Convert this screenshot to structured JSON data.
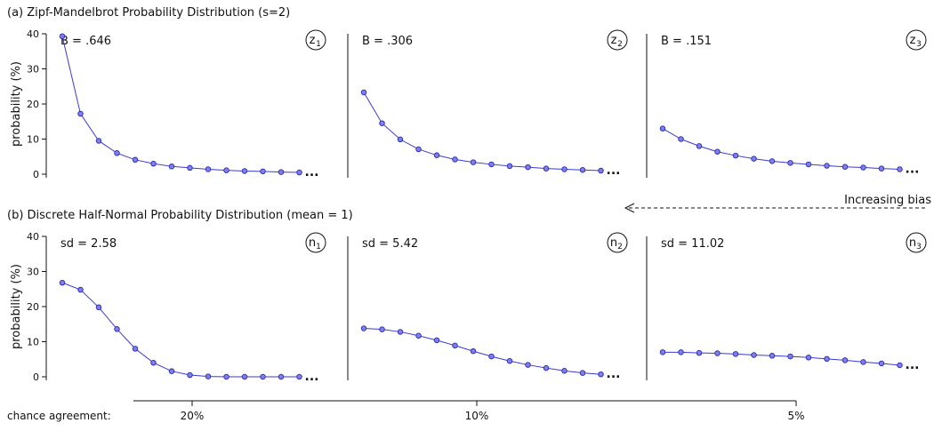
{
  "row_a_title": "(a) Zipf-Mandelbrot Probability Distribution (s=2)",
  "row_b_title": "(b) Discrete Half-Normal Probability Distribution (mean = 1)",
  "bias_label": "Increasing bias",
  "agreement": {
    "label": "chance agreement:",
    "ticks": [
      "20%",
      "10%",
      "5%"
    ]
  },
  "ellipsis": "...",
  "style": {
    "line_color": "#3a3ad0",
    "marker_fill": "#7f7fe8",
    "marker_stroke": "#2a2ab8",
    "axis_color": "#111111"
  },
  "chart_data": [
    {
      "type": "line",
      "row": "a",
      "col": 0,
      "badge": "z",
      "badge_sub": "1",
      "annotation": "B = .646",
      "ylabel": "probability (%)",
      "ylim": [
        0,
        40
      ],
      "yticks": [
        "0",
        "10",
        "20",
        "30",
        "40"
      ],
      "x": [
        1,
        2,
        3,
        4,
        5,
        6,
        7,
        8,
        9,
        10,
        11,
        12,
        13,
        14
      ],
      "values": [
        39.3,
        17.2,
        9.5,
        6.0,
        4.1,
        3.0,
        2.2,
        1.8,
        1.4,
        1.1,
        0.9,
        0.8,
        0.6,
        0.5
      ]
    },
    {
      "type": "line",
      "row": "a",
      "col": 1,
      "badge": "z",
      "badge_sub": "2",
      "annotation": "B = .306",
      "ylim": [
        0,
        40
      ],
      "x": [
        1,
        2,
        3,
        4,
        5,
        6,
        7,
        8,
        9,
        10,
        11,
        12,
        13,
        14
      ],
      "values": [
        23.3,
        14.5,
        9.9,
        7.1,
        5.4,
        4.2,
        3.4,
        2.8,
        2.3,
        2.0,
        1.6,
        1.4,
        1.2,
        1.0
      ]
    },
    {
      "type": "line",
      "row": "a",
      "col": 2,
      "badge": "z",
      "badge_sub": "3",
      "annotation": "B = .151",
      "ylim": [
        0,
        40
      ],
      "x": [
        1,
        2,
        3,
        4,
        5,
        6,
        7,
        8,
        9,
        10,
        11,
        12,
        13,
        14
      ],
      "values": [
        13.0,
        10.0,
        8.0,
        6.4,
        5.3,
        4.4,
        3.7,
        3.2,
        2.8,
        2.4,
        2.1,
        1.9,
        1.6,
        1.4
      ]
    },
    {
      "type": "line",
      "row": "b",
      "col": 0,
      "badge": "n",
      "badge_sub": "1",
      "annotation": "sd = 2.58",
      "ylabel": "probability (%)",
      "ylim": [
        0,
        40
      ],
      "yticks": [
        "0",
        "10",
        "20",
        "30",
        "40"
      ],
      "x": [
        1,
        2,
        3,
        4,
        5,
        6,
        7,
        8,
        9,
        10,
        11,
        12,
        13,
        14
      ],
      "values": [
        26.8,
        24.8,
        19.8,
        13.6,
        8.0,
        4.0,
        1.6,
        0.5,
        0.1,
        0.0,
        0.0,
        0.0,
        0.0,
        0.0
      ]
    },
    {
      "type": "line",
      "row": "b",
      "col": 1,
      "badge": "n",
      "badge_sub": "2",
      "annotation": "sd = 5.42",
      "ylim": [
        0,
        40
      ],
      "x": [
        1,
        2,
        3,
        4,
        5,
        6,
        7,
        8,
        9,
        10,
        11,
        12,
        13,
        14
      ],
      "values": [
        13.8,
        13.5,
        12.8,
        11.7,
        10.4,
        8.9,
        7.3,
        5.8,
        4.5,
        3.4,
        2.5,
        1.7,
        1.1,
        0.7
      ]
    },
    {
      "type": "line",
      "row": "b",
      "col": 2,
      "badge": "n",
      "badge_sub": "3",
      "annotation": "sd = 11.02",
      "ylim": [
        0,
        40
      ],
      "x": [
        1,
        2,
        3,
        4,
        5,
        6,
        7,
        8,
        9,
        10,
        11,
        12,
        13,
        14
      ],
      "values": [
        7.0,
        7.0,
        6.8,
        6.7,
        6.5,
        6.2,
        6.0,
        5.8,
        5.5,
        5.1,
        4.7,
        4.2,
        3.8,
        3.3
      ]
    }
  ]
}
